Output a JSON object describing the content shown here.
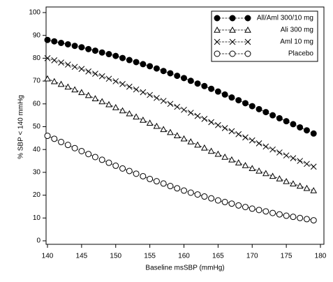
{
  "chart_data": {
    "type": "line",
    "xlabel": "Baseline msSBP (mmHg)",
    "ylabel": "% SBP < 140 mmHg",
    "x": [
      140,
      141,
      142,
      143,
      144,
      145,
      146,
      147,
      148,
      149,
      150,
      151,
      152,
      153,
      154,
      155,
      156,
      157,
      158,
      159,
      160,
      161,
      162,
      163,
      164,
      165,
      166,
      167,
      168,
      169,
      170,
      171,
      172,
      173,
      174,
      175,
      176,
      177,
      178,
      179
    ],
    "series": [
      {
        "name": "All/Aml 300/10 mg",
        "color": "#000000",
        "marker": "filled-circle",
        "values": [
          88.0,
          87.4,
          86.7,
          86.1,
          85.4,
          84.8,
          84.0,
          83.3,
          82.5,
          81.8,
          81.0,
          80.1,
          79.2,
          78.3,
          77.4,
          76.5,
          75.5,
          74.4,
          73.4,
          72.3,
          71.3,
          70.1,
          68.9,
          67.8,
          66.6,
          65.4,
          64.1,
          62.8,
          61.6,
          60.3,
          59.0,
          57.7,
          56.4,
          55.0,
          53.7,
          52.4,
          51.1,
          49.7,
          48.4,
          47.0
        ]
      },
      {
        "name": "Ali 300 mg",
        "color": "#000000",
        "marker": "triangle",
        "values": [
          71.0,
          69.8,
          68.6,
          67.4,
          66.2,
          65.0,
          63.7,
          62.3,
          61.0,
          59.7,
          58.4,
          57.0,
          55.7,
          54.3,
          52.9,
          51.6,
          50.2,
          48.8,
          47.5,
          46.1,
          44.7,
          43.4,
          42.0,
          40.7,
          39.3,
          38.0,
          36.7,
          35.5,
          34.2,
          33.0,
          31.7,
          30.6,
          29.5,
          28.3,
          27.2,
          26.0,
          25.0,
          24.0,
          23.0,
          22.0
        ]
      },
      {
        "name": "Aml 10 mg",
        "color": "#000000",
        "marker": "cross",
        "values": [
          80.0,
          79.1,
          78.1,
          77.2,
          76.2,
          75.3,
          74.2,
          73.2,
          72.1,
          71.0,
          69.9,
          68.7,
          67.5,
          66.3,
          65.1,
          63.9,
          62.6,
          61.3,
          60.0,
          58.7,
          57.4,
          56.1,
          54.7,
          53.4,
          52.0,
          50.7,
          49.4,
          48.0,
          46.7,
          45.3,
          44.0,
          42.7,
          41.3,
          40.0,
          38.7,
          37.4,
          36.2,
          35.0,
          33.7,
          32.5
        ]
      },
      {
        "name": "Placebo",
        "color": "#000000",
        "marker": "open-circle",
        "values": [
          46.0,
          44.7,
          43.3,
          42.0,
          40.6,
          39.3,
          38.0,
          36.7,
          35.5,
          34.2,
          32.9,
          31.7,
          30.6,
          29.4,
          28.3,
          27.1,
          26.1,
          25.1,
          24.0,
          23.0,
          22.0,
          21.1,
          20.3,
          19.4,
          18.6,
          17.7,
          17.0,
          16.3,
          15.5,
          14.8,
          14.1,
          13.5,
          12.9,
          12.2,
          11.6,
          11.0,
          10.5,
          10.0,
          9.5,
          9.0
        ]
      }
    ],
    "xlim": [
      140,
      180
    ],
    "xticks": [
      140,
      145,
      150,
      155,
      160,
      165,
      170,
      175,
      180
    ],
    "ylim": [
      0,
      100
    ],
    "yticks": [
      0,
      10,
      20,
      30,
      40,
      50,
      60,
      70,
      80,
      90,
      100
    ],
    "legend": "upper right"
  }
}
